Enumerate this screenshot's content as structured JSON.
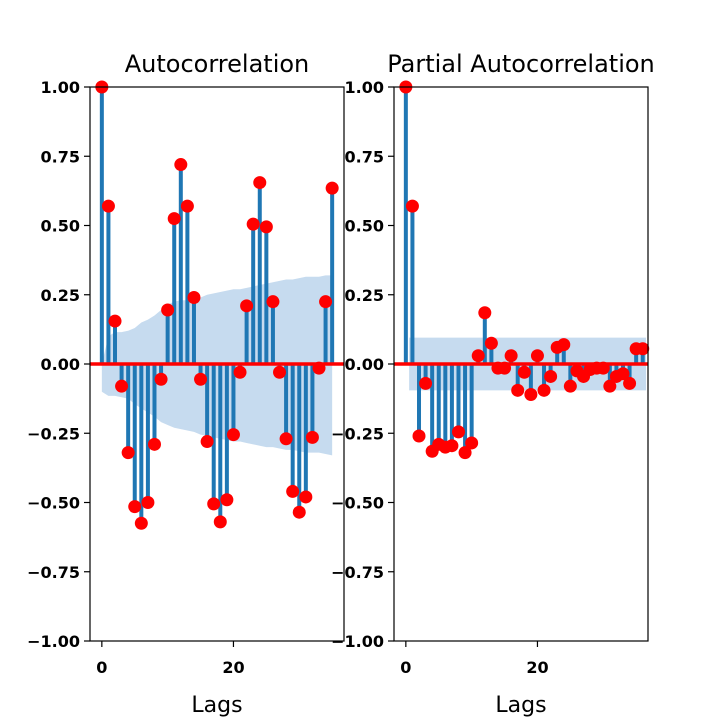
{
  "chart_data": [
    {
      "type": "stem",
      "title": "Autocorrelation",
      "xlabel": "Lags",
      "ylabel": "",
      "xlim": [
        -1.8,
        36.8
      ],
      "ylim": [
        -1.0,
        1.0
      ],
      "xticks": [
        0,
        20
      ],
      "yticks": [
        "1.00",
        "0.75",
        "0.50",
        "0.25",
        "0.00",
        "−0.25",
        "−0.50",
        "−0.75",
        "−1.00"
      ],
      "stem_color": "#1f77b4",
      "marker_color": "#ff0000",
      "confidence_color": "#c6dbef",
      "zero_line_color": "#ff0000",
      "lags": [
        0,
        1,
        2,
        3,
        4,
        5,
        6,
        7,
        8,
        9,
        10,
        11,
        12,
        13,
        14,
        15,
        16,
        17,
        18,
        19,
        20,
        21,
        22,
        23,
        24,
        25,
        26,
        27,
        28,
        29,
        30,
        31,
        32,
        33,
        34,
        35
      ],
      "values": [
        1.0,
        0.57,
        0.155,
        -0.08,
        -0.32,
        -0.515,
        -0.575,
        -0.5,
        -0.29,
        -0.055,
        0.195,
        0.525,
        0.72,
        0.57,
        0.24,
        -0.055,
        -0.28,
        -0.505,
        -0.57,
        -0.49,
        -0.255,
        -0.03,
        0.21,
        0.505,
        0.655,
        0.495,
        0.225,
        -0.03,
        -0.27,
        -0.46,
        -0.535,
        -0.48,
        -0.265,
        -0.015,
        0.225,
        0.635
      ],
      "confint_x": [
        0,
        1,
        2,
        3,
        4,
        5,
        6,
        7,
        8,
        9,
        10,
        11,
        12,
        13,
        14,
        15,
        16,
        17,
        18,
        19,
        20,
        21,
        22,
        23,
        24,
        25,
        26,
        27,
        28,
        29,
        30,
        31,
        32,
        33,
        34,
        35
      ],
      "confint_upper": [
        0.0,
        0.1,
        0.115,
        0.115,
        0.12,
        0.13,
        0.15,
        0.16,
        0.175,
        0.195,
        0.215,
        0.225,
        0.23,
        0.23,
        0.235,
        0.24,
        0.25,
        0.255,
        0.26,
        0.265,
        0.27,
        0.27,
        0.275,
        0.28,
        0.285,
        0.29,
        0.295,
        0.3,
        0.305,
        0.305,
        0.31,
        0.315,
        0.315,
        0.315,
        0.32,
        0.32
      ],
      "confint_lower": [
        -0.1,
        -0.115,
        -0.115,
        -0.12,
        -0.125,
        -0.145,
        -0.16,
        -0.175,
        -0.19,
        -0.21,
        -0.22,
        -0.23,
        -0.235,
        -0.24,
        -0.245,
        -0.255,
        -0.26,
        -0.265,
        -0.27,
        -0.275,
        -0.28,
        -0.28,
        -0.285,
        -0.29,
        -0.295,
        -0.3,
        -0.3,
        -0.305,
        -0.31,
        -0.31,
        -0.315,
        -0.32,
        -0.32,
        -0.32,
        -0.325,
        -0.33
      ]
    },
    {
      "type": "stem",
      "title": "Partial Autocorrelation",
      "xlabel": "Lags",
      "ylabel": "",
      "xlim": [
        -1.8,
        36.8
      ],
      "ylim": [
        -1.0,
        1.0
      ],
      "xticks": [
        0,
        20
      ],
      "yticks": [
        "1.00",
        "0.75",
        "0.50",
        "0.25",
        "0.00",
        "−0.25",
        "−0.50",
        "−0.75",
        "−1.00"
      ],
      "stem_color": "#1f77b4",
      "marker_color": "#ff0000",
      "confidence_color": "#c6dbef",
      "zero_line_color": "#ff0000",
      "lags": [
        0,
        1,
        2,
        3,
        4,
        5,
        6,
        7,
        8,
        9,
        10,
        11,
        12,
        13,
        14,
        15,
        16,
        17,
        18,
        19,
        20,
        21,
        22,
        23,
        24,
        25,
        26,
        27,
        28,
        29,
        30,
        31,
        32,
        33,
        34,
        35,
        36
      ],
      "values": [
        1.0,
        0.57,
        -0.26,
        -0.07,
        -0.315,
        -0.29,
        -0.3,
        -0.295,
        -0.245,
        -0.32,
        -0.285,
        0.03,
        0.185,
        0.075,
        -0.015,
        -0.015,
        0.03,
        -0.095,
        -0.03,
        -0.11,
        0.03,
        -0.095,
        -0.045,
        0.06,
        0.07,
        -0.08,
        -0.025,
        -0.045,
        -0.02,
        -0.015,
        -0.015,
        -0.08,
        -0.045,
        -0.035,
        -0.07,
        0.055,
        0.055
      ],
      "confint_x": [
        0.5,
        36.5
      ],
      "confint_upper": [
        0.095,
        0.095
      ],
      "confint_lower": [
        -0.095,
        -0.095
      ]
    }
  ]
}
